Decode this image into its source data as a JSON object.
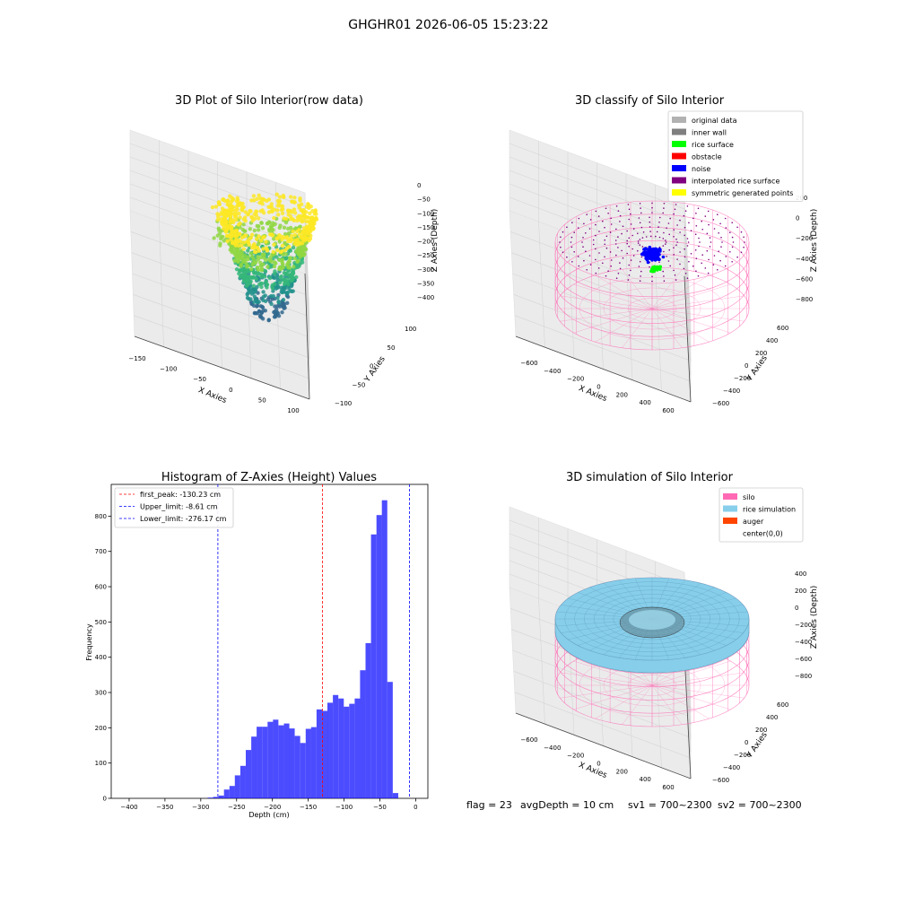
{
  "figure": {
    "suptitle": "GHGHR01 2026-06-05 15:23:22",
    "footer": {
      "flag": "flag = 23",
      "avg_depth": "avgDepth = 10 cm",
      "sv1": "sv1 = 700~2300",
      "sv2": "sv2 = 700~2300"
    }
  },
  "chart_data": [
    {
      "type": "scatter",
      "title": "3D Plot of Silo Interior(row data)",
      "xlabel": "X Axies",
      "ylabel": "Y Axies",
      "zlabel": "Z Axies (Depth)",
      "xticks": [
        "−150",
        "−100",
        "−50",
        "0",
        "50",
        "100"
      ],
      "yticks": [
        "−100",
        "−50",
        "0",
        "50",
        "100"
      ],
      "zticks": [
        "0",
        "−50",
        "−100",
        "−150",
        "−200",
        "−250",
        "−300",
        "−350",
        "−400"
      ],
      "xlim": [
        -150,
        110
      ],
      "ylim": [
        -110,
        110
      ],
      "zlim": [
        -400,
        0
      ],
      "colormap": [
        "#31688e",
        "#21918c",
        "#35b779",
        "#90d743",
        "#fde725"
      ]
    },
    {
      "type": "scatter",
      "title": "3D classify of Silo Interior",
      "xlabel": "X Axies",
      "ylabel": "Y Axies",
      "zlabel": "Z Axies (Depth)",
      "xticks": [
        "−600",
        "−400",
        "−200",
        "0",
        "200",
        "400",
        "600"
      ],
      "yticks": [
        "−600",
        "−400",
        "−200",
        "0",
        "200",
        "400",
        "600"
      ],
      "zticks": [
        "200",
        "0",
        "−200",
        "−400",
        "−600",
        "−800"
      ],
      "xlim": [
        -700,
        700
      ],
      "ylim": [
        -700,
        700
      ],
      "zlim": [
        -900,
        300
      ],
      "legend_position": "top-right",
      "legend": [
        {
          "label": "original data",
          "color": "#b2b2b2"
        },
        {
          "label": "inner wall",
          "color": "#7f7f7f"
        },
        {
          "label": "rice surface",
          "color": "#00ff00"
        },
        {
          "label": "obstacle",
          "color": "#ff0000"
        },
        {
          "label": "noise",
          "color": "#0000ff"
        },
        {
          "label": "interpolated rice surface",
          "color": "#800080"
        },
        {
          "label": "symmetric generated points",
          "color": "#ffff00"
        }
      ]
    },
    {
      "type": "bar",
      "title": "Histogram of Z-Axies (Height) Values",
      "xlabel": "Depth (cm)",
      "ylabel": "Frequency",
      "xlim": [
        -425,
        17
      ],
      "ylim": [
        0,
        890
      ],
      "xticks": [
        -400,
        -350,
        -300,
        -250,
        -200,
        -150,
        -100,
        -50,
        0
      ],
      "xtick_labels": [
        "−400",
        "−350",
        "−300",
        "−250",
        "−200",
        "−150",
        "−100",
        "−50",
        "0"
      ],
      "yticks": [
        0,
        100,
        200,
        300,
        400,
        500,
        600,
        700,
        800
      ],
      "ytick_labels": [
        "0",
        "100",
        "200",
        "300",
        "400",
        "500",
        "600",
        "700",
        "800"
      ],
      "bar_color": "#0000ff",
      "bins": {
        "start": -412,
        "width": 7.6,
        "counts": [
          0,
          0,
          0,
          0,
          0,
          0,
          0,
          0,
          0,
          0,
          0,
          0,
          0,
          0,
          0,
          0,
          2,
          4,
          8,
          25,
          35,
          65,
          92,
          137,
          175,
          203,
          203,
          217,
          223,
          207,
          212,
          198,
          177,
          157,
          197,
          202,
          252,
          248,
          271,
          293,
          283,
          260,
          268,
          283,
          363,
          440,
          748,
          803,
          845,
          330,
          15
        ]
      },
      "vlines": [
        {
          "x": -130.23,
          "color": "#ff0000",
          "label": "first_peak: -130.23 cm"
        },
        {
          "x": -8.61,
          "color": "#0000ff",
          "label": "Upper_limit: -8.61 cm"
        },
        {
          "x": -276.17,
          "color": "#0000ff",
          "label": "Lower_limit: -276.17 cm"
        }
      ],
      "legend_position": "top-left"
    },
    {
      "type": "scatter",
      "title": "3D simulation of Silo Interior",
      "xlabel": "X Axies",
      "ylabel": "Y Axies",
      "zlabel": "Z Axies (Depth)",
      "xticks": [
        "−600",
        "−400",
        "−200",
        "0",
        "200",
        "400",
        "600"
      ],
      "yticks": [
        "−600",
        "−400",
        "−200",
        "0",
        "200",
        "400",
        "600"
      ],
      "zticks": [
        "400",
        "200",
        "0",
        "−200",
        "−400",
        "−600",
        "−800"
      ],
      "xlim": [
        -700,
        700
      ],
      "ylim": [
        -700,
        700
      ],
      "zlim": [
        -900,
        500
      ],
      "legend_position": "top-right",
      "legend": [
        {
          "label": "silo",
          "color": "#ff69b4"
        },
        {
          "label": "rice simulation",
          "color": "#87ceeb"
        },
        {
          "label": "auger",
          "color": "#ff4500"
        },
        {
          "label": "center(0,0)",
          "color": ""
        }
      ]
    }
  ]
}
